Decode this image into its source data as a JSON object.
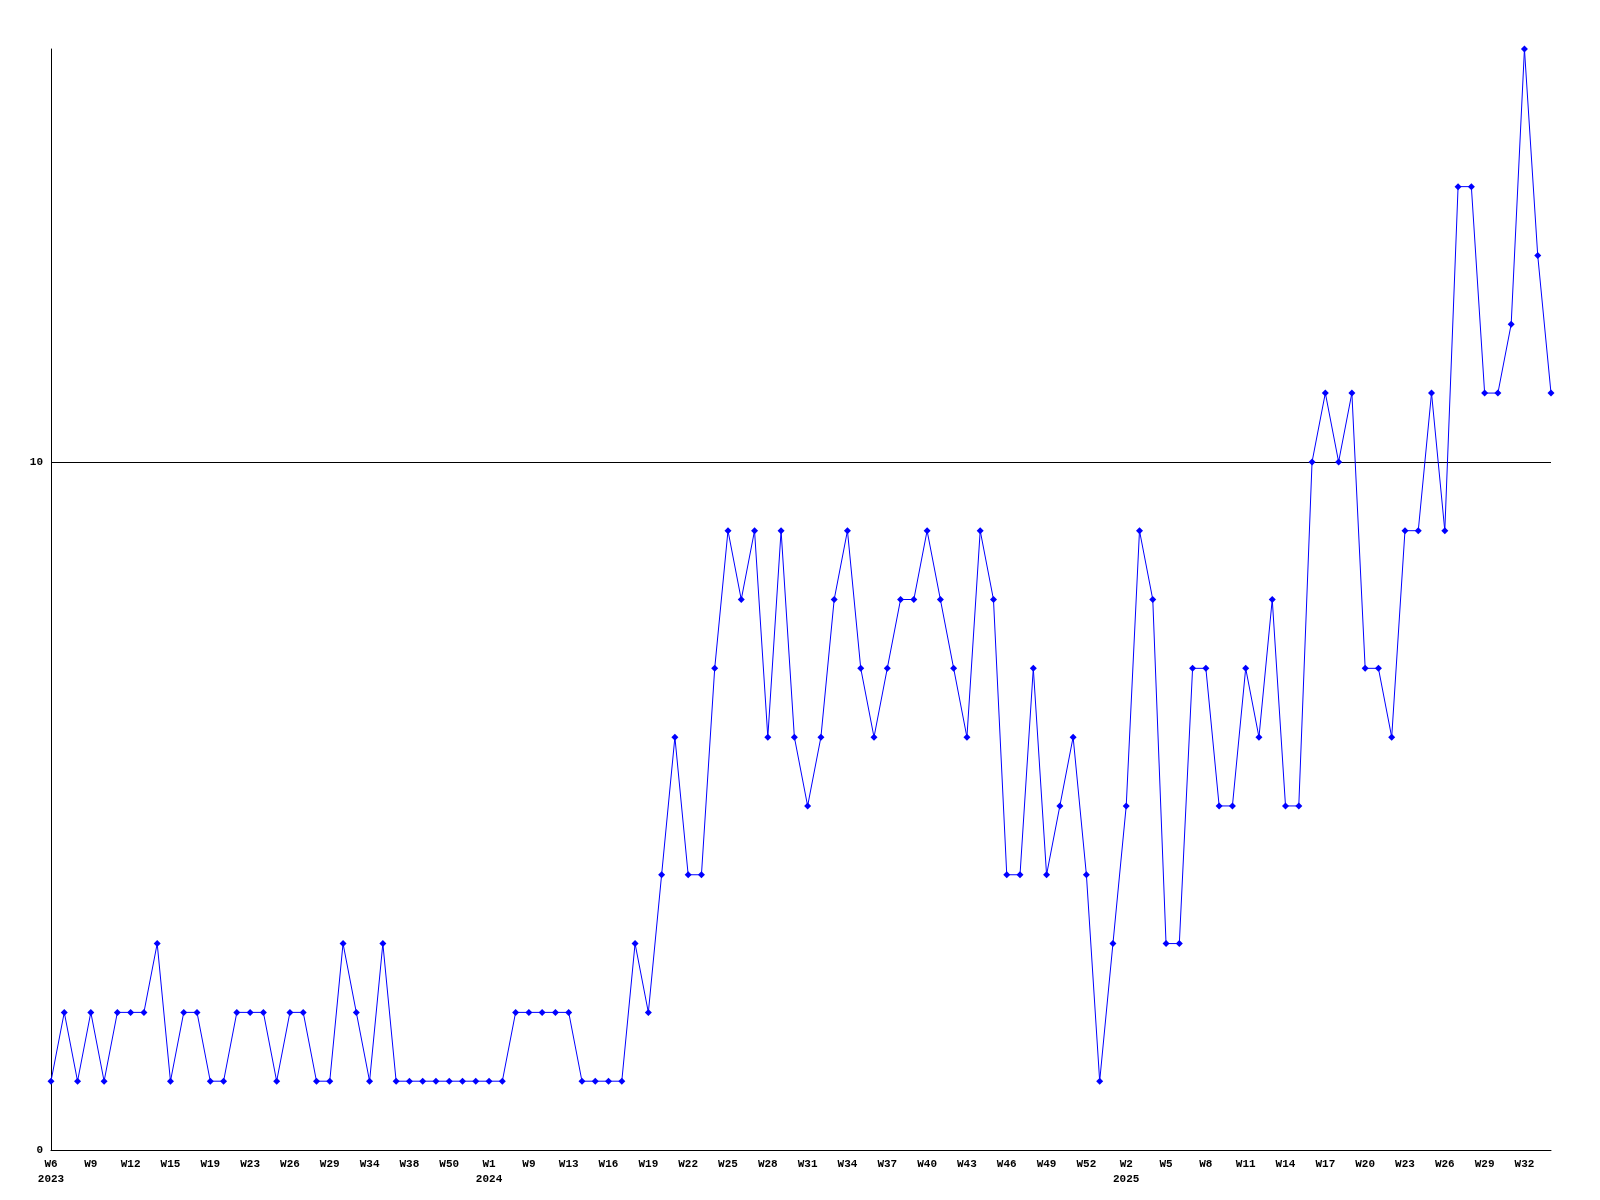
{
  "chart_data": {
    "type": "line",
    "categories": [
      "W6\n2023",
      null,
      null,
      "W9",
      null,
      null,
      "W12",
      null,
      null,
      "W15",
      null,
      null,
      "W19",
      null,
      null,
      "W23",
      null,
      null,
      "W26",
      null,
      null,
      "W29",
      null,
      null,
      "W34",
      null,
      null,
      "W38",
      null,
      null,
      "W50",
      null,
      null,
      "W1\n2024",
      null,
      null,
      "W9",
      null,
      null,
      "W13",
      null,
      null,
      "W16",
      null,
      null,
      "W19",
      null,
      null,
      "W22",
      null,
      null,
      "W25",
      null,
      null,
      "W28",
      null,
      null,
      "W31",
      null,
      null,
      "W34",
      null,
      null,
      "W37",
      null,
      null,
      "W40",
      null,
      null,
      "W43",
      null,
      null,
      "W46",
      null,
      null,
      "W49",
      null,
      null,
      "W52",
      null,
      null,
      "W2\n2025",
      null,
      null,
      "W5",
      null,
      null,
      "W8",
      null,
      null,
      "W11",
      null,
      null,
      "W14",
      null,
      null,
      "W17",
      null,
      null,
      "W20",
      null,
      null,
      "W23",
      null,
      null,
      "W26",
      null,
      null,
      "W29",
      null,
      null,
      "W32",
      null,
      null
    ],
    "series": [
      {
        "color": "#0000ff",
        "values": [
          1,
          2,
          1,
          2,
          1,
          2,
          2,
          2,
          3,
          1,
          2,
          2,
          1,
          1,
          2,
          2,
          2,
          1,
          2,
          2,
          1,
          1,
          3,
          2,
          1,
          3,
          1,
          1,
          1,
          1,
          1,
          1,
          1,
          1,
          1,
          2,
          2,
          2,
          2,
          2,
          1,
          1,
          1,
          1,
          3,
          2,
          4,
          6,
          4,
          4,
          7,
          9,
          8,
          9,
          6,
          9,
          6,
          5,
          6,
          8,
          9,
          7,
          6,
          7,
          8,
          8,
          9,
          8,
          7,
          6,
          9,
          8,
          4,
          4,
          7,
          4,
          5,
          6,
          4,
          1,
          3,
          5,
          9,
          8,
          3,
          3,
          7,
          7,
          5,
          5,
          7,
          6,
          8,
          5,
          5,
          10,
          11,
          10,
          11,
          7,
          7,
          6,
          9,
          9,
          11,
          9,
          14,
          14,
          11,
          11,
          12,
          16,
          13,
          11
        ]
      }
    ],
    "ylim": [
      0,
      16
    ],
    "yticks": [
      0,
      10
    ],
    "grid": "y",
    "marker": "diamond"
  }
}
